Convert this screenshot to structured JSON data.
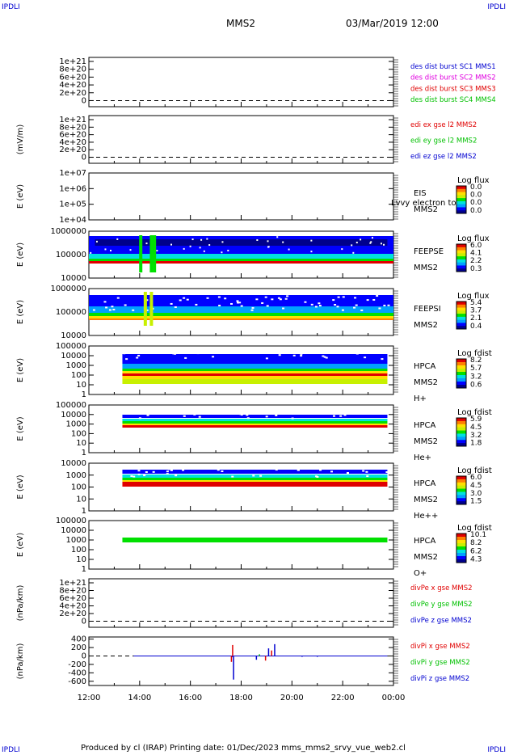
{
  "corner_labels": {
    "tl": "IPDLI",
    "tr": "IPDLI",
    "bl": "IPDLI",
    "br": "IPDLI"
  },
  "header": {
    "mission": "MMS2",
    "date": "03/Mar/2019 12:00"
  },
  "footer": {
    "text": "Produced by cl (IRAP)   Printing date: 01/Dec/2023   mms_mms2_srvy_vue_web2.cl"
  },
  "colors": {
    "red": "#e00000",
    "green": "#00c000",
    "blue": "#0000d0",
    "magenta": "#e000e0",
    "spec": [
      "#00008c",
      "#0000ff",
      "#00a0ff",
      "#00e0e0",
      "#00e000",
      "#c8f000",
      "#ffe000",
      "#ff8000",
      "#e00000"
    ]
  },
  "chart_data": [
    {
      "type": "line",
      "panel": "des dist burst",
      "ylabel": "",
      "yticks": [
        "1e+21",
        "8e+20",
        "6e+20",
        "4e+20",
        "2e+20",
        "0"
      ],
      "series": [
        {
          "name": "des dist burst SC1 MMS1",
          "color": "#0000d0"
        },
        {
          "name": "des dist burst SC2 MMS2",
          "color": "#e000e0"
        },
        {
          "name": "des dist burst SC3 MMS3",
          "color": "#e00000"
        },
        {
          "name": "des dist burst SC4 MMS4",
          "color": "#00c000"
        }
      ]
    },
    {
      "type": "line",
      "panel": "edi",
      "ylabel": "(mV/m)",
      "yticks": [
        "1e+21",
        "8e+20",
        "6e+20",
        "4e+20",
        "2e+20",
        "0"
      ],
      "series": [
        {
          "name": "edi ex gse l2 MMS2",
          "color": "#e00000"
        },
        {
          "name": "edi ey gse l2 MMS2",
          "color": "#00c000"
        },
        {
          "name": "edi ez gse l2 MMS2",
          "color": "#0000d0"
        }
      ]
    },
    {
      "type": "heatmap",
      "panel": "EIS",
      "ylabel": "E (eV)",
      "yticks": [
        "1e+07",
        "1e+06",
        "1e+05",
        "1e+04"
      ],
      "instrument": [
        "EIS",
        "MMS2"
      ],
      "overlay_text": "Lvvy electron to",
      "colorbar_title": "Log flux",
      "colorbar_ticks": [
        "0.0",
        "0.0",
        "0.0",
        "0.0"
      ]
    },
    {
      "type": "heatmap",
      "panel": "FEEPSE",
      "ylabel": "E (eV)",
      "yticks": [
        "1000000",
        "100000",
        "10000"
      ],
      "instrument": [
        "FEEPSE",
        "MMS2"
      ],
      "colorbar_title": "Log flux",
      "colorbar_ticks": [
        "6.0",
        "4.1",
        "2.2",
        "0.3"
      ]
    },
    {
      "type": "heatmap",
      "panel": "FEEPSI",
      "ylabel": "E (eV)",
      "yticks": [
        "1000000",
        "100000",
        "10000"
      ],
      "instrument": [
        "FEEPSI",
        "MMS2"
      ],
      "colorbar_title": "Log flux",
      "colorbar_ticks": [
        "5.4",
        "3.7",
        "2.1",
        "0.4"
      ]
    },
    {
      "type": "heatmap",
      "panel": "HPCA H+",
      "ylabel": "E (eV)",
      "yticks": [
        "100000",
        "10000",
        "1000",
        "100",
        "10",
        "1"
      ],
      "instrument": [
        "HPCA",
        "MMS2",
        "H+"
      ],
      "colorbar_title": "Log fdist",
      "colorbar_ticks": [
        "8.2",
        "5.7",
        "3.2",
        "0.6"
      ]
    },
    {
      "type": "heatmap",
      "panel": "HPCA He+",
      "ylabel": "E (eV)",
      "yticks": [
        "100000",
        "10000",
        "1000",
        "100",
        "10",
        "1"
      ],
      "instrument": [
        "HPCA",
        "MMS2",
        "He+"
      ],
      "colorbar_title": "Log fdist",
      "colorbar_ticks": [
        "5.9",
        "4.5",
        "3.2",
        "1.8"
      ]
    },
    {
      "type": "heatmap",
      "panel": "HPCA He++",
      "ylabel": "E (eV)",
      "yticks": [
        "10000",
        "1000",
        "100",
        "10",
        "1"
      ],
      "instrument": [
        "HPCA",
        "MMS2",
        "He++"
      ],
      "colorbar_title": "Log fdist",
      "colorbar_ticks": [
        "6.0",
        "4.5",
        "3.0",
        "1.5"
      ]
    },
    {
      "type": "heatmap",
      "panel": "HPCA O+",
      "ylabel": "E (eV)",
      "yticks": [
        "100000",
        "10000",
        "1000",
        "100",
        "10",
        "1"
      ],
      "instrument": [
        "HPCA",
        "MMS2",
        "O+"
      ],
      "colorbar_title": "Log fdist",
      "colorbar_ticks": [
        "10.1",
        "8.2",
        "6.2",
        "4.3"
      ]
    },
    {
      "type": "line",
      "panel": "divPe",
      "ylabel": "(nPa/km)",
      "yticks": [
        "1e+21",
        "8e+20",
        "6e+20",
        "4e+20",
        "2e+20",
        "0"
      ],
      "series": [
        {
          "name": "divPe x gse MMS2",
          "color": "#e00000"
        },
        {
          "name": "divPe y gse MMS2",
          "color": "#00c000"
        },
        {
          "name": "divPe z gse MMS2",
          "color": "#0000d0"
        }
      ]
    },
    {
      "type": "line",
      "panel": "divPi",
      "ylabel": "(nPa/km)",
      "yticks": [
        "400",
        "200",
        "0",
        "-200",
        "-400",
        "-600"
      ],
      "ylim": [
        -700,
        450
      ],
      "series": [
        {
          "name": "divPi x gse MMS2",
          "color": "#e00000"
        },
        {
          "name": "divPi y gse MMS2",
          "color": "#00c000"
        },
        {
          "name": "divPi z gse MMS2",
          "color": "#0000d0"
        }
      ]
    }
  ],
  "xaxis": {
    "ticks": [
      "12:00",
      "14:00",
      "16:00",
      "18:00",
      "20:00",
      "22:00",
      "00:00"
    ]
  }
}
